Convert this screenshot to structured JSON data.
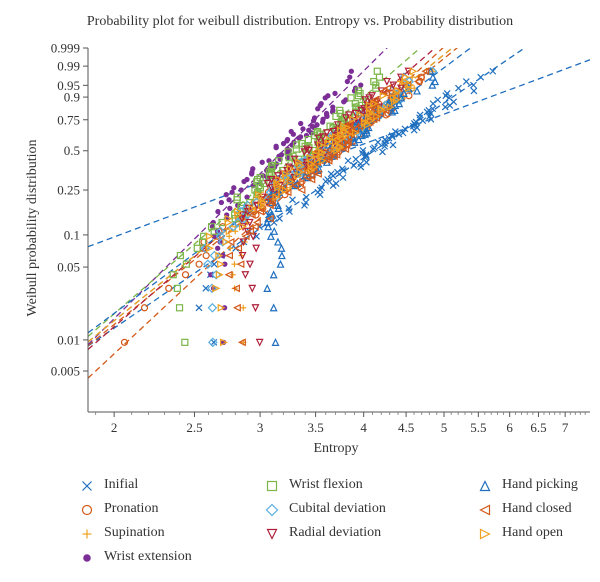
{
  "chart_data": {
    "type": "scatter",
    "title": "Probability plot for weibull distribution. Entropy vs. Probability distribution",
    "xlabel": "Entropy",
    "ylabel": "Weibull probability distribution",
    "x_scale": "log",
    "y_scale": "weibull",
    "xlim": [
      1.86,
      7.5
    ],
    "ylim": [
      0.002,
      0.999
    ],
    "x_ticks": [
      2,
      2.5,
      3,
      3.5,
      4,
      4.5,
      5,
      5.5,
      6,
      6.5,
      7
    ],
    "x_tick_labels": [
      "2",
      "2.5",
      "3",
      "3.5",
      "4",
      "4.5",
      "5",
      "5.5",
      "6",
      "6.5",
      "7"
    ],
    "y_ticks": [
      0.005,
      0.01,
      0.05,
      0.1,
      0.25,
      0.5,
      0.75,
      0.9,
      0.95,
      0.99,
      0.999
    ],
    "y_tick_labels": [
      "0.005",
      "0.01",
      "0.05",
      "0.1",
      "0.25",
      "0.5",
      "0.75",
      "0.9",
      "0.95",
      "0.99",
      "0.999"
    ],
    "series": [
      {
        "name": "Inifial",
        "marker": "x",
        "color": "#1f6fbf",
        "scale": 4.4,
        "shape": 5.5,
        "xmin": 2.5,
        "xmax": 7.1
      },
      {
        "name": "Pronation",
        "marker": "circle",
        "color": "#d45a1a",
        "scale": 3.85,
        "shape": 6.5,
        "xmin": 1.92,
        "xmax": 6.4
      },
      {
        "name": "Supination",
        "marker": "plus",
        "color": "#f0a020",
        "scale": 3.8,
        "shape": 6.5,
        "xmin": 2.75,
        "xmax": 6.7
      },
      {
        "name": "Wrist extension",
        "marker": "star",
        "color": "#7b2e96",
        "scale": 3.35,
        "shape": 8.0,
        "xmin": 2.6,
        "xmax": 4.2
      },
      {
        "name": "Wrist flexion",
        "marker": "square",
        "color": "#7ab648",
        "scale": 3.55,
        "shape": 7.0,
        "xmin": 2.35,
        "xmax": 4.2
      },
      {
        "name": "Cubital deviation",
        "marker": "diamond",
        "color": "#5aaedf",
        "scale": 3.8,
        "shape": 6.5,
        "xmin": 2.55,
        "xmax": 5.6
      },
      {
        "name": "Radial deviation",
        "marker": "triangle-down",
        "color": "#b0203a",
        "scale": 3.7,
        "shape": 7.0,
        "xmin": 2.85,
        "xmax": 4.7
      },
      {
        "name": "Hand picking",
        "marker": "triangle-up",
        "color": "#1f6fbf",
        "scale": 3.9,
        "shape": 6.0,
        "xmin": 3.05,
        "xmax": 6.6
      },
      {
        "name": "Hand closed",
        "marker": "triangle-left",
        "color": "#d45a1a",
        "scale": 3.85,
        "shape": 7.5,
        "xmin": 2.75,
        "xmax": 5.9
      },
      {
        "name": "Hand open",
        "marker": "triangle-right",
        "color": "#f0a020",
        "scale": 3.8,
        "shape": 6.5,
        "xmin": 2.6,
        "xmax": 5.6
      }
    ]
  },
  "reference_line": {
    "name": "Inifial fit",
    "color": "#1f6fbf",
    "scale": 4.3,
    "shape": 3.0
  }
}
